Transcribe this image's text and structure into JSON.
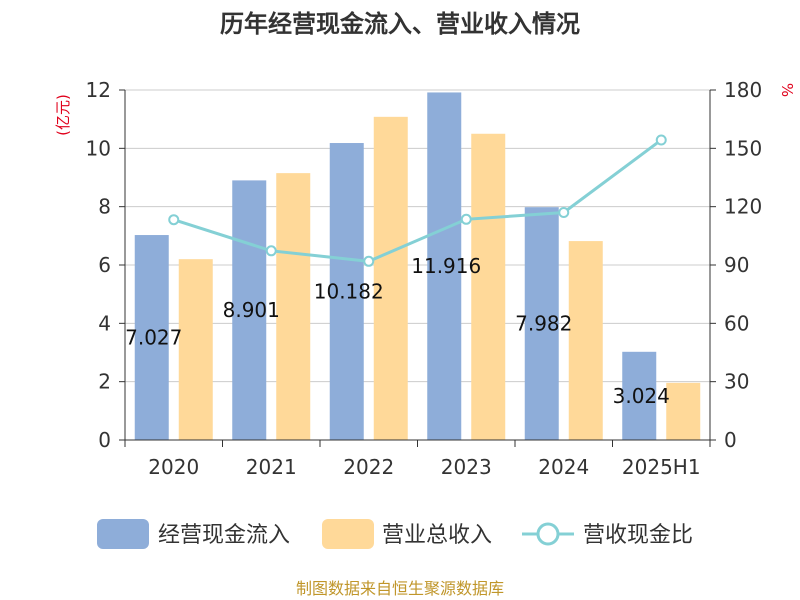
{
  "chart_data": {
    "type": "bar",
    "title": "历年经营现金流入、营业收入情况",
    "left_unit": "(亿元)",
    "right_unit": "%",
    "categories": [
      "2020",
      "2021",
      "2022",
      "2023",
      "2024",
      "2025H1"
    ],
    "series": [
      {
        "name": "经营现金流入",
        "type": "bar",
        "axis": "left",
        "color": "#8eadd9",
        "values": [
          7.027,
          8.901,
          10.182,
          11.916,
          7.982,
          3.024
        ],
        "labels": [
          "7.027",
          "8.901",
          "10.182",
          "11.916",
          "7.982",
          "3.024"
        ]
      },
      {
        "name": "营业总收入",
        "type": "bar",
        "axis": "left",
        "color": "#ffd999",
        "values": [
          6.2,
          9.15,
          11.08,
          10.5,
          6.82,
          1.96
        ]
      },
      {
        "name": "营收现金比",
        "type": "line",
        "axis": "right",
        "color": "#84d0d5",
        "values": [
          113.3,
          97.3,
          91.9,
          113.5,
          117.0,
          154.3
        ]
      }
    ],
    "ylim_left": [
      0,
      12
    ],
    "yticks_left": [
      "0",
      "2",
      "4",
      "6",
      "8",
      "10",
      "12"
    ],
    "ylim_right": [
      0,
      180
    ],
    "yticks_right": [
      "0",
      "30",
      "60",
      "90",
      "120",
      "150",
      "180"
    ],
    "grid": true,
    "legend_position": "bottom"
  },
  "source": "制图数据来自恒生聚源数据库"
}
